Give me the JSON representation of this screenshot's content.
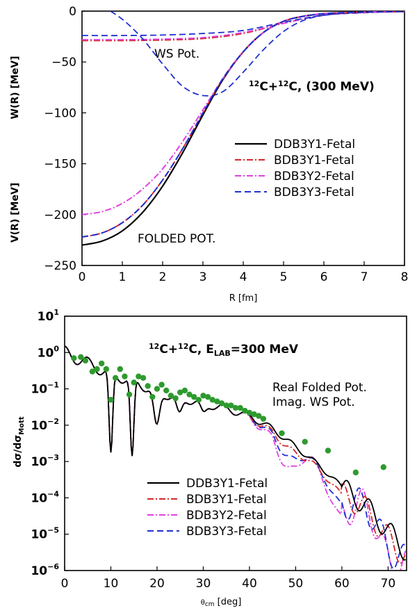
{
  "chart_data": [
    {
      "type": "line",
      "xlabel": "R [fm]",
      "ylabel_top": "W(R) [MeV]",
      "ylabel_bottom": "V(R) [MeV]",
      "xlim": [
        0,
        8
      ],
      "ylim": [
        -250,
        0
      ],
      "x_ticks": [
        "0",
        "1",
        "2",
        "3",
        "4",
        "5",
        "6",
        "7",
        "8"
      ],
      "y_ticks": [
        "0",
        "−50",
        "−100",
        "−150",
        "−200",
        "−250"
      ],
      "title": "12C+12C, (300 MeV)",
      "annotations": {
        "ws": "WS Pot.",
        "folded": "FOLDED POT."
      },
      "legend_position": "center-right",
      "colors": {
        "DDB3Y1": "#000000",
        "BDB3Y1": "#d62728",
        "BDB3Y2": "#e040e0",
        "BDB3Y3": "#1f2fd0"
      },
      "series": [
        {
          "name": "DDB3Y1-Fetal",
          "x": [
            0,
            0.5,
            1,
            1.5,
            2,
            2.5,
            3,
            3.5,
            4,
            4.5,
            5,
            5.5,
            6,
            6.5,
            7,
            7.5,
            8
          ],
          "y": [
            -230,
            -226,
            -216,
            -198,
            -172,
            -139,
            -102,
            -67,
            -40,
            -21,
            -10,
            -5,
            -2.5,
            -1.5,
            -1,
            -0.5,
            -0.3
          ]
        },
        {
          "name": "BDB3Y1-Fetal",
          "x": [
            0,
            0.5,
            1,
            1.5,
            2,
            2.5,
            3,
            3.5,
            4,
            4.5,
            5,
            5.5,
            6,
            6.5,
            7,
            7.5,
            8
          ],
          "y": [
            -222,
            -218,
            -208,
            -191,
            -166,
            -135,
            -100,
            -66,
            -40,
            -21,
            -10,
            -5,
            -2.5,
            -1.5,
            -1,
            -0.5,
            -0.3
          ]
        },
        {
          "name": "BDB3Y2-Fetal",
          "x": [
            0,
            0.5,
            1,
            1.5,
            2,
            2.5,
            3,
            3.5,
            4,
            4.5,
            5,
            5.5,
            6,
            6.5,
            7,
            7.5,
            8
          ],
          "y": [
            -200,
            -197,
            -189,
            -175,
            -155,
            -128,
            -97,
            -66,
            -40,
            -21,
            -10,
            -5,
            -2.5,
            -1.5,
            -1,
            -0.5,
            -0.3
          ]
        },
        {
          "name": "BDB3Y3-Fetal",
          "x": [
            0,
            0.5,
            1,
            1.5,
            2,
            2.5,
            3,
            3.5,
            4,
            4.5,
            5,
            5.5,
            6,
            6.5,
            7,
            7.5,
            8
          ],
          "y": [
            -222,
            -218,
            -208,
            -191,
            -166,
            -135,
            -100,
            -66,
            -40,
            -21,
            -10,
            -5,
            -2.5,
            -1.5,
            -1,
            -0.5,
            -0.3
          ]
        }
      ],
      "ws_series": [
        {
          "name": "BDB3Y1-Fetal",
          "x": [
            0,
            1,
            2,
            3,
            4,
            5,
            6,
            7,
            8
          ],
          "y": [
            -29,
            -29,
            -28.5,
            -27,
            -22,
            -12,
            -4,
            -1.5,
            -0.5
          ]
        },
        {
          "name": "BDB3Y2-Fetal",
          "x": [
            0,
            1,
            2,
            3,
            4,
            5,
            6,
            7,
            8
          ],
          "y": [
            -28,
            -28,
            -27.5,
            -26,
            -21,
            -12,
            -4,
            -1.5,
            -0.5
          ]
        },
        {
          "name": "BDB3Y3-Fetal",
          "x": [
            0,
            1,
            2,
            3,
            4,
            5,
            6,
            7,
            8
          ],
          "y": [
            -24,
            -24,
            -23.5,
            -22,
            -19,
            -11,
            -4,
            -1.5,
            -0.5
          ]
        },
        {
          "name": "BDB3Y3-Fetal",
          "x": [
            0.5,
            1,
            1.5,
            2,
            2.5,
            3,
            3.5,
            4,
            4.5,
            5,
            5.5,
            6,
            6.5,
            7,
            7.5,
            8
          ],
          "y": [
            5,
            -8,
            -27,
            -52,
            -74,
            -83,
            -79,
            -60,
            -38,
            -20,
            -9,
            -4,
            -2,
            -1,
            -0.5,
            -0.3
          ]
        }
      ]
    },
    {
      "type": "line",
      "xlabel": "θcm [deg]",
      "ylabel": "dσ/dσMott",
      "xlim": [
        0,
        74
      ],
      "ylim": [
        1e-06,
        10
      ],
      "log_y": true,
      "x_ticks": [
        "0",
        "10",
        "20",
        "30",
        "40",
        "50",
        "60",
        "70"
      ],
      "y_ticks": [
        "10^1",
        "10^0",
        "10^-1",
        "10^-2",
        "10^-3",
        "10^-4",
        "10^-5",
        "10^-6"
      ],
      "title": "12C+12C, ELAB=300 MeV",
      "annotations": {
        "line1": "Real Folded Pot.",
        "line2": "Imag. WS Pot."
      },
      "legend_position": "lower-left",
      "series": [
        {
          "name": "DDB3Y1-Fetal"
        },
        {
          "name": "BDB3Y1-Fetal"
        },
        {
          "name": "BDB3Y2-Fetal"
        },
        {
          "name": "BDB3Y3-Fetal"
        }
      ],
      "envelope": {
        "x": [
          0,
          5,
          10,
          15,
          20,
          25,
          30,
          35,
          40,
          45,
          50,
          55,
          60,
          65,
          70,
          74
        ],
        "log10y": [
          0,
          -0.3,
          -0.6,
          -0.8,
          -1.1,
          -1.25,
          -1.4,
          -1.55,
          -1.75,
          -2.1,
          -2.6,
          -3.1,
          -3.7,
          -4.2,
          -4.9,
          -5.5
        ]
      },
      "experimental": {
        "x": [
          2,
          3.5,
          4.5,
          6,
          7,
          8,
          9,
          10,
          11,
          12,
          13,
          14,
          15,
          16,
          17,
          18,
          19,
          20,
          21,
          22,
          23,
          24,
          25,
          26,
          27,
          28,
          29,
          30,
          31,
          32,
          33,
          34,
          35,
          36,
          37,
          38,
          39,
          40,
          41,
          42,
          43,
          47,
          52,
          57,
          63,
          69
        ],
        "y": [
          0.7,
          0.75,
          0.6,
          0.3,
          0.35,
          0.5,
          0.35,
          0.05,
          0.2,
          0.35,
          0.22,
          0.07,
          0.15,
          0.22,
          0.2,
          0.12,
          0.06,
          0.1,
          0.13,
          0.09,
          0.065,
          0.055,
          0.08,
          0.09,
          0.07,
          0.06,
          0.05,
          0.065,
          0.06,
          0.05,
          0.045,
          0.04,
          0.035,
          0.035,
          0.03,
          0.03,
          0.025,
          0.022,
          0.02,
          0.018,
          0.015,
          0.006,
          0.0035,
          0.002,
          0.0005,
          0.0007
        ]
      }
    }
  ]
}
